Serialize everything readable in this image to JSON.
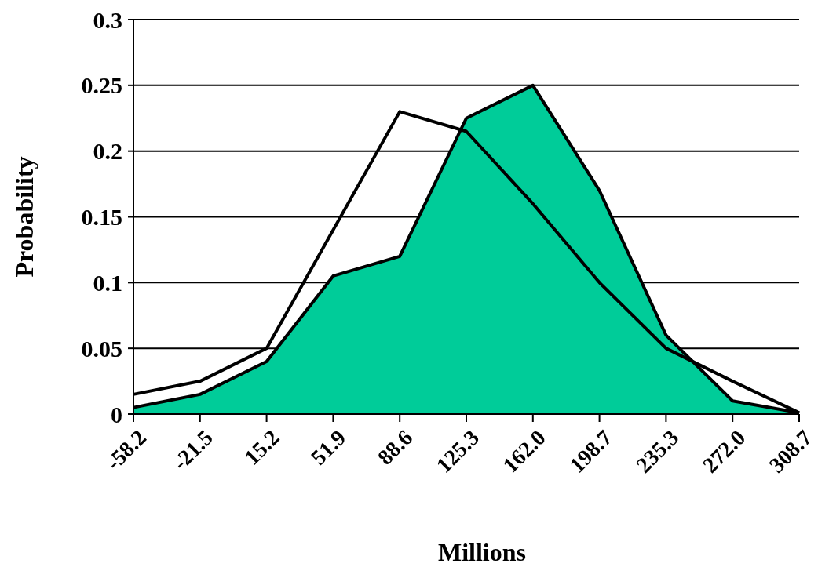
{
  "chart_data": {
    "type": "area",
    "xlabel": "Millions",
    "ylabel": "Probability",
    "categories": [
      "-58.2",
      "-21.5",
      "15.2",
      "51.9",
      "88.6",
      "125.3",
      "162.0",
      "198.7",
      "235.3",
      "272.0",
      "308.7"
    ],
    "series": [
      {
        "color": "#00cc99",
        "values": [
          0.005,
          0.015,
          0.04,
          0.105,
          0.12,
          0.225,
          0.25,
          0.17,
          0.06,
          0.01,
          0.001
        ]
      },
      {
        "type": "line",
        "color": "#000000",
        "values": [
          0.015,
          0.025,
          0.05,
          0.14,
          0.23,
          0.215,
          0.16,
          0.1,
          0.05,
          0.025,
          0.001
        ]
      }
    ],
    "ylim": [
      0,
      0.3
    ],
    "yticks": [
      0,
      0.05,
      0.1,
      0.15,
      0.2,
      0.25,
      0.3
    ],
    "grid": "y",
    "marker": "none",
    "line_style": "solid"
  }
}
